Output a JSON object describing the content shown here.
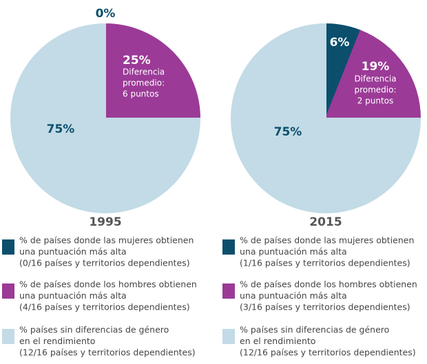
{
  "chart_data": [
    {
      "type": "pie",
      "title": "1995",
      "values": [
        0,
        25,
        75
      ],
      "value_labels": [
        "0%",
        "25%",
        "75%"
      ],
      "colors": [
        "#0b4f6c",
        "#9b3a97",
        "#c2dbe6"
      ],
      "annotation": [
        "Diferencia",
        "promedio:",
        "6 puntos"
      ],
      "legend": [
        {
          "name": [
            "% de países donde las mujeres obtienen",
            "una puntuación más alta"
          ],
          "detail": "(0/16 países y territorios dependientes)"
        },
        {
          "name": [
            "% de países donde los hombres obtienen",
            "una puntuación más alta"
          ],
          "detail": "(4/16 países y territorios dependientes)"
        },
        {
          "name": [
            "% países sin diferencias de género",
            "en el rendimiento"
          ],
          "detail": "(12/16 países y territorios dependientes)"
        }
      ]
    },
    {
      "type": "pie",
      "title": "2015",
      "values": [
        6,
        19,
        75
      ],
      "value_labels": [
        "6%",
        "19%",
        "75%"
      ],
      "colors": [
        "#0b4f6c",
        "#9b3a97",
        "#c2dbe6"
      ],
      "annotation": [
        "Diferencia",
        "promedio:",
        "2 puntos"
      ],
      "legend": [
        {
          "name": [
            "% de países donde las mujeres obtienen",
            "una puntuación más alta"
          ],
          "detail": "(1/16 países y territorios dependientes)"
        },
        {
          "name": [
            "% de países donde los hombres obtienen",
            "una puntuación más alta"
          ],
          "detail": "(3/16 países y territorios dependientes)"
        },
        {
          "name": [
            "% países sin diferencias de género",
            "en el rendimiento"
          ],
          "detail": "(12/16 países y territorios dependientes)"
        }
      ]
    }
  ]
}
